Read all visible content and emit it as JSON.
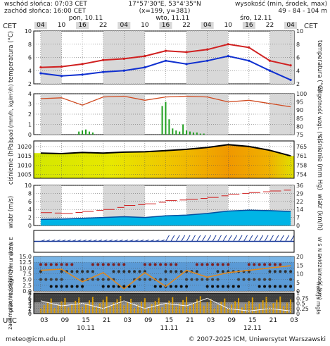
{
  "header": {
    "sunrise": "wschód słońca: 07:03 CET",
    "sunset": "zachód słońca: 16:00 CET",
    "coords": "17°57'30\"E, 53°4'35\"N",
    "grid": "(x=199, y=381)",
    "elev_label": "wysokość (min, środek, max)",
    "elev_values": "49 - 84 - 104 m"
  },
  "tz_left": "CET",
  "tz_right": "CET",
  "tz_bottom": "UTC",
  "top_hours": [
    "04",
    "10",
    "16",
    "22",
    "04",
    "10",
    "16",
    "22",
    "04",
    "10",
    "16",
    "22",
    "04"
  ],
  "bottom_hours": [
    "03",
    "09",
    "15",
    "21",
    "03",
    "09",
    "15",
    "21",
    "03",
    "09",
    "15",
    "21",
    "03"
  ],
  "top_days": [
    "pon, 10.11",
    "wto, 11.11",
    "śro, 12.11"
  ],
  "bottom_days": [
    "10.11",
    "11.11",
    "12.11"
  ],
  "footer": {
    "email": "meteo@icm.edu.pl",
    "copyright": "© 2007-2025 ICM, Uniwersytet Warszawski"
  },
  "panels": {
    "temp": {
      "left_label": "temperatura (°C)",
      "right_label": "temperatura (°C)"
    },
    "precip": {
      "left_label": "opad (mm/h, kg/m²/h)",
      "right_label": "wilgotność wzgl. (%)"
    },
    "pressure": {
      "left_label": "ciśnienie (hPa)",
      "right_label": "ciśnienie (mm Hg)"
    },
    "wind": {
      "left_label": "wiatr (m/s)",
      "right_label": "wiatr (km/h)"
    },
    "winddir": {
      "left_label": "W S N E",
      "right_label": "W S N E"
    },
    "cloud": {
      "left_label": "pion. rozciągł. chmur (km)",
      "right_label": "widzialność (km)"
    },
    "cover": {
      "left_label": "zachmurzenie (oktanty)",
      "right_label": "frakcja mgła"
    }
  },
  "colors": {
    "temp_red": "#d02020",
    "dew_blue": "#1030d0",
    "precip_green": "#20a020",
    "humidity": "#d04a20",
    "pressure_line": "#000000",
    "wind_line": "#d02020",
    "wind_fill": "#00b4e6",
    "cloud_bg": "#78b4e6",
    "weekend_gray": "#d8d8d8"
  },
  "chart_data": [
    {
      "type": "line",
      "id": "temp",
      "ylim": [
        2,
        10
      ],
      "yticks": [
        2,
        4,
        6,
        8,
        10
      ],
      "x_hours": [
        0,
        6,
        12,
        18,
        24,
        30,
        36,
        42,
        48,
        54,
        60,
        66,
        72
      ],
      "series": [
        {
          "values": [
            4.5,
            4.6,
            5.0,
            5.6,
            5.8,
            6.2,
            7.0,
            6.8,
            7.2,
            8.0,
            7.5,
            5.5,
            4.8
          ]
        },
        {
          "values": [
            3.6,
            3.2,
            3.4,
            3.8,
            4.0,
            4.5,
            5.5,
            5.0,
            5.5,
            6.2,
            5.5,
            4.0,
            2.6
          ]
        }
      ]
    },
    {
      "type": "bar",
      "id": "precip",
      "ylim": [
        0,
        4
      ],
      "yticks": [
        0,
        1,
        2,
        3,
        4
      ],
      "y2lim": [
        75,
        100
      ],
      "y2ticks": [
        75,
        80,
        85,
        90,
        95,
        100
      ],
      "bar_hours": [
        11,
        12,
        13,
        14,
        15,
        35,
        36,
        37,
        38,
        39,
        40,
        41,
        42,
        43,
        44,
        45,
        46,
        47
      ],
      "bar_values": [
        0.3,
        0.4,
        0.5,
        0.3,
        0.2,
        2.8,
        3.2,
        1.5,
        0.6,
        0.4,
        0.3,
        1.0,
        0.4,
        0.3,
        0.2,
        0.2,
        0.1,
        0.1
      ],
      "humidity_hours": [
        0,
        6,
        12,
        18,
        24,
        30,
        36,
        42,
        48,
        54,
        60,
        66,
        72
      ],
      "humidity_values": [
        97,
        97.5,
        93,
        98,
        98.5,
        96,
        98,
        98.5,
        98,
        95,
        96,
        94,
        92
      ]
    },
    {
      "type": "area",
      "id": "pressure",
      "ylim": [
        1005,
        1020
      ],
      "yticks": [
        1005,
        1010,
        1015,
        1020
      ],
      "y2ticks": [
        754,
        758,
        761,
        765
      ],
      "x_hours": [
        0,
        6,
        12,
        18,
        24,
        30,
        36,
        42,
        48,
        54,
        60,
        66,
        72
      ],
      "values": [
        1016.5,
        1016.2,
        1016.8,
        1016.5,
        1017.0,
        1017.2,
        1017.8,
        1018.5,
        1019.5,
        1021.0,
        1020.0,
        1018.0,
        1015.0
      ]
    },
    {
      "type": "line",
      "id": "wind",
      "ylim": [
        0,
        10
      ],
      "yticks": [
        0,
        2,
        4,
        6,
        8,
        10
      ],
      "y2ticks": [
        0,
        7,
        14,
        22,
        29,
        36
      ],
      "x_hours": [
        0,
        6,
        12,
        18,
        24,
        30,
        36,
        42,
        48,
        54,
        60,
        66,
        72
      ],
      "speed": [
        1.5,
        1.6,
        1.8,
        2.0,
        2.2,
        2.0,
        2.4,
        2.6,
        3.0,
        3.6,
        3.8,
        3.7,
        3.5
      ],
      "gust": [
        3.2,
        3.0,
        3.5,
        4.0,
        5.0,
        5.4,
        6.2,
        6.5,
        7.0,
        7.8,
        8.2,
        8.6,
        9.0
      ]
    },
    {
      "type": "line",
      "id": "cloud",
      "ylim": [
        0,
        15
      ],
      "yticks": [
        0,
        2.5,
        5,
        7.5,
        10,
        12.5,
        15
      ],
      "y2ticks": [
        0,
        5,
        10,
        15,
        20
      ],
      "x_hours": [
        0,
        6,
        12,
        18,
        24,
        30,
        36,
        42,
        48,
        54,
        60,
        66,
        72
      ],
      "visibility": [
        9,
        9.5,
        4,
        8,
        1,
        8,
        2,
        9,
        6,
        8,
        9,
        10,
        11
      ]
    },
    {
      "type": "bar",
      "id": "cover",
      "ylim": [
        0,
        8
      ],
      "yticks": [
        0,
        1,
        2,
        3,
        4,
        5,
        6,
        7,
        8
      ],
      "y2ticks": [
        0,
        0.25,
        0.5,
        0.75,
        1
      ],
      "y2ticklabels": [
        "0",
        "0.25",
        "0.5",
        "0.75",
        "1"
      ],
      "x_hours": [
        0,
        6,
        12,
        18,
        24,
        30,
        36,
        42,
        48,
        54,
        60,
        66,
        72
      ],
      "low_cloud": [
        5,
        3,
        4,
        2,
        5,
        2,
        4,
        3,
        6,
        2,
        1,
        2,
        1
      ]
    }
  ]
}
